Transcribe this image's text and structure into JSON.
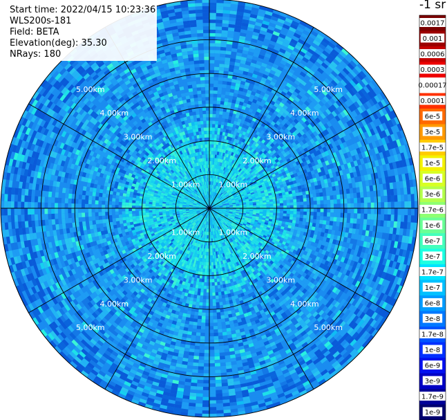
{
  "info": {
    "start_time": "Start time: 2022/04/15 10:23:36",
    "device": "WLS200s-181",
    "field": "Field: BETA",
    "elevation": "Elevation(deg): 35.30",
    "nrays": "NRays: 180"
  },
  "colorbar": {
    "title": "-1 sr",
    "labels": [
      "0.0017",
      "0.001",
      "0.0006",
      "0.0003",
      "0.00017",
      "0.0001",
      "6e-5",
      "3e-5",
      "1.7e-5",
      "1e-5",
      "6e-6",
      "3e-6",
      "1.7e-6",
      "1e-6",
      "6e-7",
      "3e-7",
      "1.7e-7",
      "1e-7",
      "6e-8",
      "3e-8",
      "1.7e-8",
      "1e-8",
      "6e-9",
      "3e-9",
      "1.7e-9",
      "1e-9"
    ],
    "colors": [
      "#7a0000",
      "#9c0000",
      "#c40000",
      "#ee0000",
      "#ffffff",
      "#ff3000",
      "#ff6a00",
      "#ff9a00",
      "#ffcc00",
      "#f4f200",
      "#d8ff24",
      "#b4ff4c",
      "#8eff72",
      "#6aff96",
      "#44ffbc",
      "#1cffe2",
      "#00e4ff",
      "#00c0ff",
      "#009cff",
      "#0078ff",
      "#0054ff",
      "#0030ff",
      "#0010f0",
      "#0000c4",
      "#000098",
      "#00006e"
    ]
  },
  "chart_data": {
    "type": "polar_ppi",
    "field": "BETA",
    "units": "sr-1",
    "elevation_deg": 35.3,
    "n_rays": 180,
    "range_rings_km": [
      1.0,
      2.0,
      3.0,
      4.0,
      5.0
    ],
    "ring_label": [
      "1.00km",
      "2.00km",
      "3.00km",
      "4.00km",
      "5.00km"
    ],
    "max_range_km": 6.2,
    "spokes_deg": [
      0,
      30,
      60,
      90,
      120,
      150,
      180,
      210,
      240,
      270,
      300,
      330
    ],
    "grid": true,
    "background_color": "#1a8cf0",
    "inner_region_color": "#1ee0e8"
  }
}
